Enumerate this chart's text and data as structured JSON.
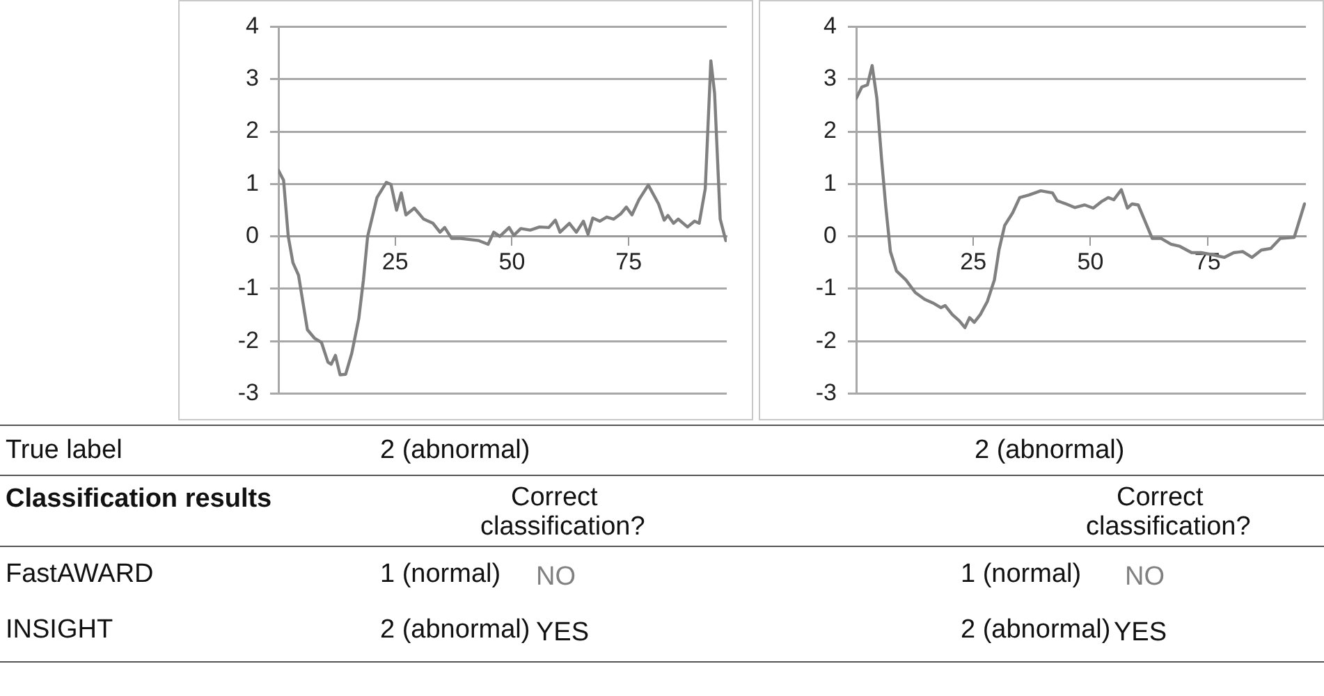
{
  "chart_data": [
    {
      "type": "line",
      "xlim": [
        0,
        96
      ],
      "ylim": [
        -3,
        4
      ],
      "xticks": [
        25,
        50,
        75
      ],
      "yticks": [
        -3,
        -2,
        -1,
        0,
        1,
        2,
        3,
        4
      ],
      "grid": "y",
      "marker": "none",
      "series": [
        {
          "color": "#808080",
          "x": [
            0,
            1.1,
            2.1,
            3.1,
            4.3,
            6.2,
            7.7,
            9.2,
            10.6,
            11.3,
            12.2,
            13.2,
            14.4,
            15.7,
            17.2,
            18.2,
            19.1,
            21.1,
            23.1,
            24.1,
            25.3,
            26.3,
            27.3,
            29.1,
            31.1,
            33.1,
            34.6,
            35.6,
            37.1,
            39,
            42.9,
            44.9,
            46.1,
            47.4,
            49.4,
            50.4,
            51.9,
            53.9,
            55.9,
            57.9,
            59.3,
            60.3,
            62.3,
            63.8,
            65.3,
            66.3,
            67.3,
            68.8,
            70.3,
            71.8,
            73.3,
            74.5,
            75.7,
            77.2,
            79.2,
            81.4,
            82.6,
            83.4,
            84.6,
            85.6,
            87.6,
            89.1,
            90.1,
            91.4,
            92.6,
            93.4,
            94.6,
            95.8
          ],
          "values": [
            1.26,
            1.07,
            0,
            -0.5,
            -0.74,
            -1.78,
            -1.94,
            -2.02,
            -2.4,
            -2.44,
            -2.27,
            -2.64,
            -2.63,
            -2.23,
            -1.57,
            -0.83,
            0,
            0.74,
            1.03,
            0.99,
            0.5,
            0.83,
            0.41,
            0.54,
            0.33,
            0.25,
            0.08,
            0.17,
            -0.04,
            -0.04,
            -0.08,
            -0.15,
            0.08,
            0,
            0.17,
            0.02,
            0.15,
            0.12,
            0.18,
            0.17,
            0.31,
            0.08,
            0.25,
            0.08,
            0.29,
            0.04,
            0.35,
            0.29,
            0.37,
            0.33,
            0.43,
            0.56,
            0.41,
            0.7,
            0.98,
            0.62,
            0.31,
            0.4,
            0.25,
            0.33,
            0.18,
            0.29,
            0.25,
            0.91,
            3.35,
            2.73,
            0.33,
            -0.08
          ]
        }
      ]
    },
    {
      "type": "line",
      "xlim": [
        0,
        96
      ],
      "ylim": [
        -3,
        4
      ],
      "xticks": [
        25,
        50,
        75
      ],
      "yticks": [
        -3,
        -2,
        -1,
        0,
        1,
        2,
        3,
        4
      ],
      "grid": "y",
      "marker": "none",
      "series": [
        {
          "color": "#808080",
          "x": [
            0,
            1.2,
            2.4,
            3.4,
            4.4,
            5.4,
            6.3,
            7.3,
            8.6,
            10.6,
            12.6,
            14.6,
            16.6,
            18.1,
            19,
            20.5,
            22,
            23.2,
            24.2,
            25.2,
            26.5,
            28,
            29.5,
            30.5,
            31.7,
            33.4,
            34.9,
            36.9,
            39.4,
            41.9,
            42.9,
            44.8,
            46.7,
            48.8,
            50.6,
            52.3,
            53.8,
            55,
            56.6,
            57.9,
            58.9,
            60.2,
            63.2,
            65.1,
            67.2,
            69.1,
            71.6,
            73.6,
            76.1,
            78.6,
            80.6,
            82.5,
            84.5,
            86.5,
            88.5,
            90.5,
            93.5,
            95.7
          ],
          "values": [
            2.63,
            2.85,
            2.89,
            3.26,
            2.64,
            1.49,
            0.58,
            -0.29,
            -0.66,
            -0.83,
            -1.07,
            -1.2,
            -1.28,
            -1.36,
            -1.32,
            -1.49,
            -1.61,
            -1.74,
            -1.55,
            -1.64,
            -1.49,
            -1.24,
            -0.83,
            -0.25,
            0.21,
            0.45,
            0.74,
            0.79,
            0.87,
            0.83,
            0.68,
            0.62,
            0.55,
            0.6,
            0.54,
            0.66,
            0.74,
            0.7,
            0.89,
            0.54,
            0.62,
            0.6,
            -0.04,
            -0.04,
            -0.15,
            -0.19,
            -0.31,
            -0.31,
            -0.35,
            -0.4,
            -0.31,
            -0.29,
            -0.4,
            -0.26,
            -0.23,
            -0.04,
            -0.02,
            0.62
          ]
        }
      ]
    },
    {
      "type": "other",
      "annotations": [
        "True label",
        "2 (abnormal)",
        "2 (abnormal)",
        "Classification results",
        "Correct classification?",
        "Correct classification?",
        "FastAWARD",
        "1 (normal)",
        "NO",
        "1 (normal)",
        "NO",
        "INSIGHT",
        "2 (abnormal)",
        "YES",
        "2 (abnormal)",
        "YES"
      ]
    }
  ]
}
